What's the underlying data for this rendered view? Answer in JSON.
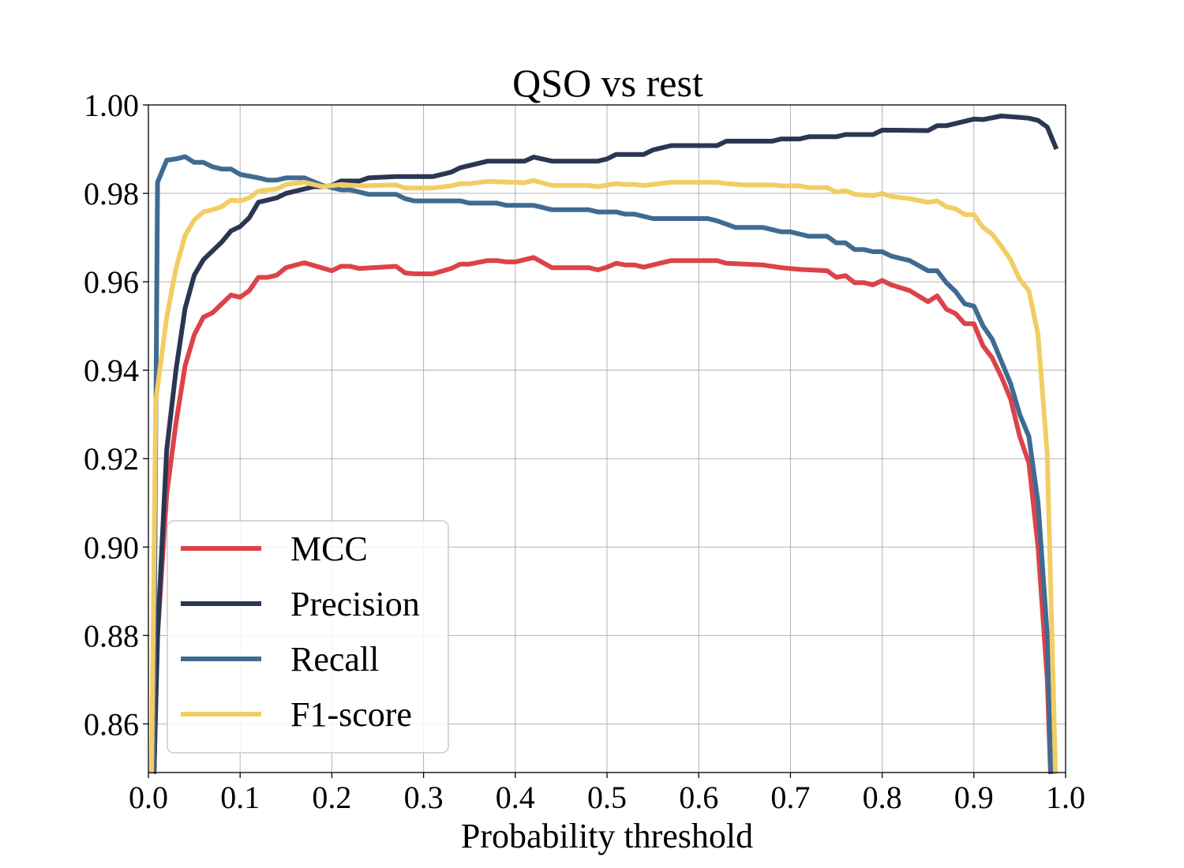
{
  "chart_data": {
    "type": "line",
    "title": "QSO vs rest",
    "xlabel": "Probability threshold",
    "ylabel": "",
    "xlim": [
      0.0,
      1.0
    ],
    "ylim": [
      0.849,
      1.0
    ],
    "xticks": [
      "0.0",
      "0.1",
      "0.2",
      "0.3",
      "0.4",
      "0.5",
      "0.6",
      "0.7",
      "0.8",
      "0.9",
      "1.0"
    ],
    "yticks": [
      "0.86",
      "0.88",
      "0.90",
      "0.92",
      "0.94",
      "0.96",
      "0.98",
      "1.00"
    ],
    "grid": true,
    "legend_position": "lower-left",
    "series": [
      {
        "name": "MCC",
        "color": "#dc4349",
        "points": [
          [
            0.005,
            0.84
          ],
          [
            0.01,
            0.88
          ],
          [
            0.02,
            0.912
          ],
          [
            0.03,
            0.928
          ],
          [
            0.04,
            0.941
          ],
          [
            0.05,
            0.948
          ],
          [
            0.06,
            0.952
          ],
          [
            0.07,
            0.953
          ],
          [
            0.08,
            0.955
          ],
          [
            0.09,
            0.957
          ],
          [
            0.1,
            0.9565
          ],
          [
            0.11,
            0.958
          ],
          [
            0.12,
            0.961
          ],
          [
            0.13,
            0.961
          ],
          [
            0.14,
            0.9615
          ],
          [
            0.15,
            0.9632
          ],
          [
            0.17,
            0.9643
          ],
          [
            0.2,
            0.9625
          ],
          [
            0.21,
            0.9635
          ],
          [
            0.22,
            0.9635
          ],
          [
            0.23,
            0.963
          ],
          [
            0.27,
            0.9635
          ],
          [
            0.28,
            0.962
          ],
          [
            0.29,
            0.9618
          ],
          [
            0.31,
            0.9618
          ],
          [
            0.33,
            0.963
          ],
          [
            0.34,
            0.964
          ],
          [
            0.35,
            0.964
          ],
          [
            0.37,
            0.9648
          ],
          [
            0.38,
            0.9648
          ],
          [
            0.39,
            0.9645
          ],
          [
            0.4,
            0.9645
          ],
          [
            0.42,
            0.9655
          ],
          [
            0.44,
            0.9632
          ],
          [
            0.48,
            0.9632
          ],
          [
            0.49,
            0.9627
          ],
          [
            0.5,
            0.9633
          ],
          [
            0.51,
            0.9642
          ],
          [
            0.52,
            0.9638
          ],
          [
            0.53,
            0.9638
          ],
          [
            0.54,
            0.9633
          ],
          [
            0.57,
            0.9648
          ],
          [
            0.62,
            0.9648
          ],
          [
            0.63,
            0.9642
          ],
          [
            0.67,
            0.9638
          ],
          [
            0.69,
            0.9632
          ],
          [
            0.71,
            0.9628
          ],
          [
            0.74,
            0.9625
          ],
          [
            0.75,
            0.961
          ],
          [
            0.76,
            0.9614
          ],
          [
            0.77,
            0.9598
          ],
          [
            0.78,
            0.9598
          ],
          [
            0.79,
            0.9593
          ],
          [
            0.8,
            0.9603
          ],
          [
            0.81,
            0.9593
          ],
          [
            0.83,
            0.958
          ],
          [
            0.85,
            0.9555
          ],
          [
            0.86,
            0.9568
          ],
          [
            0.87,
            0.9538
          ],
          [
            0.88,
            0.9528
          ],
          [
            0.89,
            0.9505
          ],
          [
            0.9,
            0.9505
          ],
          [
            0.91,
            0.9455
          ],
          [
            0.92,
            0.9428
          ],
          [
            0.93,
            0.9385
          ],
          [
            0.94,
            0.9335
          ],
          [
            0.95,
            0.925
          ],
          [
            0.96,
            0.919
          ],
          [
            0.97,
            0.9
          ],
          [
            0.98,
            0.87
          ],
          [
            0.985,
            0.84
          ]
        ]
      },
      {
        "name": "Precision",
        "color": "#2b3651",
        "points": [
          [
            0.005,
            0.84
          ],
          [
            0.01,
            0.88
          ],
          [
            0.02,
            0.922
          ],
          [
            0.03,
            0.94
          ],
          [
            0.04,
            0.954
          ],
          [
            0.05,
            0.9615
          ],
          [
            0.06,
            0.965
          ],
          [
            0.07,
            0.967
          ],
          [
            0.08,
            0.969
          ],
          [
            0.09,
            0.9715
          ],
          [
            0.1,
            0.9725
          ],
          [
            0.11,
            0.9745
          ],
          [
            0.12,
            0.978
          ],
          [
            0.13,
            0.9785
          ],
          [
            0.14,
            0.979
          ],
          [
            0.15,
            0.98
          ],
          [
            0.16,
            0.9805
          ],
          [
            0.17,
            0.981
          ],
          [
            0.18,
            0.9815
          ],
          [
            0.19,
            0.9815
          ],
          [
            0.2,
            0.9818
          ],
          [
            0.21,
            0.9828
          ],
          [
            0.23,
            0.9828
          ],
          [
            0.24,
            0.9835
          ],
          [
            0.27,
            0.9838
          ],
          [
            0.31,
            0.9838
          ],
          [
            0.33,
            0.9848
          ],
          [
            0.34,
            0.9858
          ],
          [
            0.37,
            0.9873
          ],
          [
            0.41,
            0.9873
          ],
          [
            0.42,
            0.9882
          ],
          [
            0.44,
            0.9873
          ],
          [
            0.49,
            0.9873
          ],
          [
            0.5,
            0.9878
          ],
          [
            0.51,
            0.9888
          ],
          [
            0.54,
            0.9888
          ],
          [
            0.55,
            0.9898
          ],
          [
            0.57,
            0.9908
          ],
          [
            0.62,
            0.9908
          ],
          [
            0.63,
            0.9918
          ],
          [
            0.68,
            0.9918
          ],
          [
            0.69,
            0.9923
          ],
          [
            0.71,
            0.9923
          ],
          [
            0.72,
            0.9928
          ],
          [
            0.75,
            0.9928
          ],
          [
            0.76,
            0.9933
          ],
          [
            0.79,
            0.9933
          ],
          [
            0.8,
            0.9943
          ],
          [
            0.85,
            0.9942
          ],
          [
            0.86,
            0.9953
          ],
          [
            0.87,
            0.9953
          ],
          [
            0.9,
            0.9968
          ],
          [
            0.91,
            0.9967
          ],
          [
            0.93,
            0.9975
          ],
          [
            0.95,
            0.9972
          ],
          [
            0.96,
            0.997
          ],
          [
            0.97,
            0.9965
          ],
          [
            0.98,
            0.995
          ],
          [
            0.99,
            0.99
          ]
        ]
      },
      {
        "name": "Recall",
        "color": "#3f6b93",
        "points": [
          [
            0.005,
            0.84
          ],
          [
            0.01,
            0.9825
          ],
          [
            0.02,
            0.9875
          ],
          [
            0.03,
            0.9878
          ],
          [
            0.04,
            0.9883
          ],
          [
            0.05,
            0.987
          ],
          [
            0.06,
            0.987
          ],
          [
            0.07,
            0.986
          ],
          [
            0.08,
            0.9855
          ],
          [
            0.09,
            0.9855
          ],
          [
            0.1,
            0.9843
          ],
          [
            0.12,
            0.9835
          ],
          [
            0.13,
            0.983
          ],
          [
            0.14,
            0.983
          ],
          [
            0.15,
            0.9835
          ],
          [
            0.17,
            0.9835
          ],
          [
            0.19,
            0.9818
          ],
          [
            0.21,
            0.9808
          ],
          [
            0.22,
            0.9808
          ],
          [
            0.24,
            0.9798
          ],
          [
            0.27,
            0.9798
          ],
          [
            0.28,
            0.9788
          ],
          [
            0.29,
            0.9783
          ],
          [
            0.34,
            0.9783
          ],
          [
            0.35,
            0.9778
          ],
          [
            0.38,
            0.9778
          ],
          [
            0.39,
            0.9773
          ],
          [
            0.42,
            0.9773
          ],
          [
            0.44,
            0.9763
          ],
          [
            0.48,
            0.9763
          ],
          [
            0.49,
            0.9758
          ],
          [
            0.51,
            0.9758
          ],
          [
            0.52,
            0.9753
          ],
          [
            0.53,
            0.9753
          ],
          [
            0.55,
            0.9743
          ],
          [
            0.61,
            0.9743
          ],
          [
            0.62,
            0.9738
          ],
          [
            0.64,
            0.9723
          ],
          [
            0.67,
            0.9723
          ],
          [
            0.69,
            0.9713
          ],
          [
            0.7,
            0.9713
          ],
          [
            0.72,
            0.9703
          ],
          [
            0.74,
            0.9703
          ],
          [
            0.75,
            0.9688
          ],
          [
            0.76,
            0.9688
          ],
          [
            0.77,
            0.9673
          ],
          [
            0.78,
            0.9673
          ],
          [
            0.79,
            0.9668
          ],
          [
            0.8,
            0.9668
          ],
          [
            0.81,
            0.9658
          ],
          [
            0.83,
            0.9648
          ],
          [
            0.85,
            0.9625
          ],
          [
            0.86,
            0.9625
          ],
          [
            0.87,
            0.9598
          ],
          [
            0.88,
            0.9578
          ],
          [
            0.89,
            0.955
          ],
          [
            0.9,
            0.9545
          ],
          [
            0.91,
            0.95
          ],
          [
            0.92,
            0.947
          ],
          [
            0.93,
            0.942
          ],
          [
            0.94,
            0.937
          ],
          [
            0.95,
            0.93
          ],
          [
            0.96,
            0.925
          ],
          [
            0.97,
            0.91
          ],
          [
            0.98,
            0.88
          ],
          [
            0.985,
            0.84
          ]
        ]
      },
      {
        "name": "F1-score",
        "color": "#f2cd64",
        "points": [
          [
            0.003,
            0.84
          ],
          [
            0.008,
            0.933
          ],
          [
            0.02,
            0.952
          ],
          [
            0.03,
            0.963
          ],
          [
            0.04,
            0.9705
          ],
          [
            0.05,
            0.974
          ],
          [
            0.06,
            0.9758
          ],
          [
            0.07,
            0.9763
          ],
          [
            0.08,
            0.977
          ],
          [
            0.09,
            0.9785
          ],
          [
            0.1,
            0.9783
          ],
          [
            0.11,
            0.979
          ],
          [
            0.12,
            0.9805
          ],
          [
            0.13,
            0.9808
          ],
          [
            0.14,
            0.981
          ],
          [
            0.15,
            0.982
          ],
          [
            0.17,
            0.9825
          ],
          [
            0.19,
            0.9815
          ],
          [
            0.21,
            0.982
          ],
          [
            0.23,
            0.9817
          ],
          [
            0.27,
            0.9819
          ],
          [
            0.28,
            0.9812
          ],
          [
            0.31,
            0.9812
          ],
          [
            0.33,
            0.9817
          ],
          [
            0.34,
            0.9822
          ],
          [
            0.35,
            0.9822
          ],
          [
            0.37,
            0.9827
          ],
          [
            0.41,
            0.9824
          ],
          [
            0.42,
            0.9829
          ],
          [
            0.44,
            0.9818
          ],
          [
            0.48,
            0.9818
          ],
          [
            0.49,
            0.9815
          ],
          [
            0.51,
            0.9822
          ],
          [
            0.52,
            0.982
          ],
          [
            0.53,
            0.982
          ],
          [
            0.54,
            0.9818
          ],
          [
            0.57,
            0.9825
          ],
          [
            0.62,
            0.9825
          ],
          [
            0.63,
            0.9822
          ],
          [
            0.65,
            0.9819
          ],
          [
            0.68,
            0.9819
          ],
          [
            0.69,
            0.9817
          ],
          [
            0.71,
            0.9817
          ],
          [
            0.72,
            0.9813
          ],
          [
            0.74,
            0.9813
          ],
          [
            0.75,
            0.9803
          ],
          [
            0.76,
            0.9806
          ],
          [
            0.77,
            0.9798
          ],
          [
            0.79,
            0.9795
          ],
          [
            0.8,
            0.98
          ],
          [
            0.81,
            0.9793
          ],
          [
            0.83,
            0.9788
          ],
          [
            0.85,
            0.978
          ],
          [
            0.86,
            0.9783
          ],
          [
            0.87,
            0.977
          ],
          [
            0.88,
            0.9765
          ],
          [
            0.89,
            0.9752
          ],
          [
            0.9,
            0.9752
          ],
          [
            0.91,
            0.9723
          ],
          [
            0.92,
            0.9708
          ],
          [
            0.93,
            0.968
          ],
          [
            0.94,
            0.965
          ],
          [
            0.95,
            0.9605
          ],
          [
            0.96,
            0.958
          ],
          [
            0.97,
            0.948
          ],
          [
            0.98,
            0.921
          ],
          [
            0.99,
            0.84
          ]
        ]
      }
    ]
  }
}
